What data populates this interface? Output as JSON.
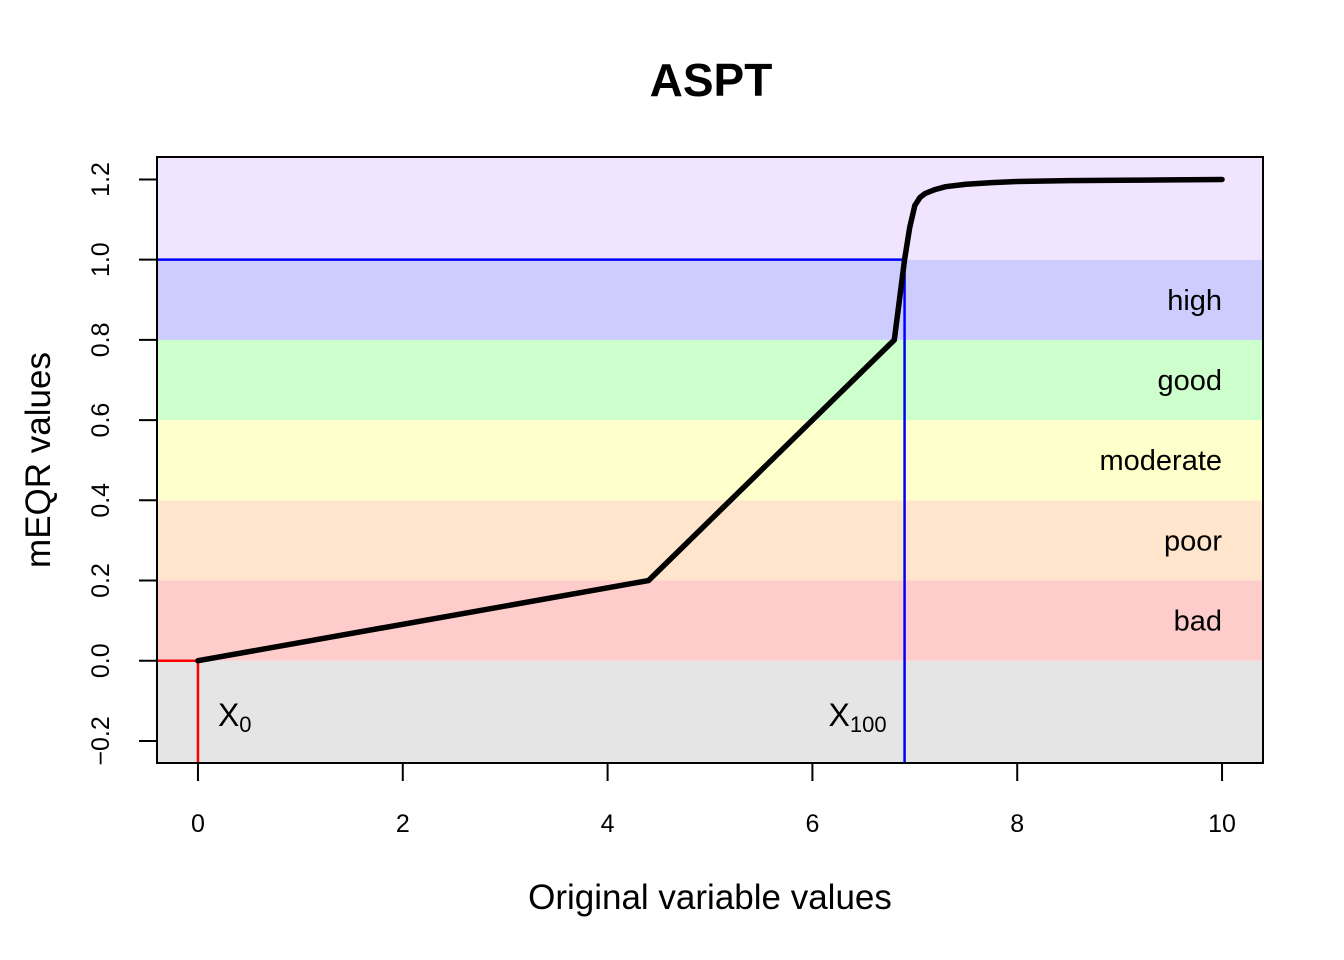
{
  "chart_data": {
    "type": "line",
    "title": "ASPT",
    "xlabel": "Original variable values",
    "ylabel": "mEQR values",
    "xlim": [
      -0.4,
      10.4
    ],
    "ylim": [
      -0.255,
      1.256
    ],
    "xticks": [
      0,
      2,
      4,
      6,
      8,
      10
    ],
    "xtick_labels": [
      "0",
      "2",
      "4",
      "6",
      "8",
      "10"
    ],
    "yticks": [
      -0.2,
      0.0,
      0.2,
      0.4,
      0.6,
      0.8,
      1.0,
      1.2
    ],
    "ytick_labels": [
      "−0.2",
      "0.0",
      "0.2",
      "0.4",
      "0.6",
      "0.8",
      "1.0",
      "1.2"
    ],
    "bands": [
      {
        "name": "below-zero",
        "label": "",
        "from": -0.255,
        "to": 0.0,
        "color": "#e5e5e5"
      },
      {
        "name": "bad",
        "label": "bad",
        "from": 0.0,
        "to": 0.2,
        "color": "#ffcccc"
      },
      {
        "name": "poor",
        "label": "poor",
        "from": 0.2,
        "to": 0.4,
        "color": "#ffe5cc"
      },
      {
        "name": "moderate",
        "label": "moderate",
        "from": 0.4,
        "to": 0.6,
        "color": "#ffffcc"
      },
      {
        "name": "good",
        "label": "good",
        "from": 0.6,
        "to": 0.8,
        "color": "#ccffcc"
      },
      {
        "name": "high",
        "label": "high",
        "from": 0.8,
        "to": 1.0,
        "color": "#ccccff"
      },
      {
        "name": "above-one",
        "label": "",
        "from": 1.0,
        "to": 1.256,
        "color": "#f1e4ff"
      }
    ],
    "series": [
      {
        "name": "mEQR curve",
        "color": "#000000",
        "x": [
          0,
          4.4,
          6.8,
          6.85,
          6.9,
          6.95,
          7.0,
          7.05,
          7.1,
          7.2,
          7.3,
          7.5,
          7.75,
          8.0,
          8.5,
          9.0,
          9.5,
          10.0
        ],
        "y": [
          0,
          0.2,
          0.8,
          0.9,
          1.0,
          1.08,
          1.135,
          1.155,
          1.165,
          1.175,
          1.182,
          1.188,
          1.192,
          1.195,
          1.197,
          1.198,
          1.199,
          1.2
        ]
      }
    ],
    "markers": [
      {
        "name": "x0",
        "label": "X",
        "subscript": "0",
        "x": 0,
        "y": 0,
        "color": "#ff0000"
      },
      {
        "name": "x100",
        "label": "X",
        "subscript": "100",
        "x": 6.9,
        "y": 1.0,
        "color": "#0000ff"
      }
    ]
  }
}
